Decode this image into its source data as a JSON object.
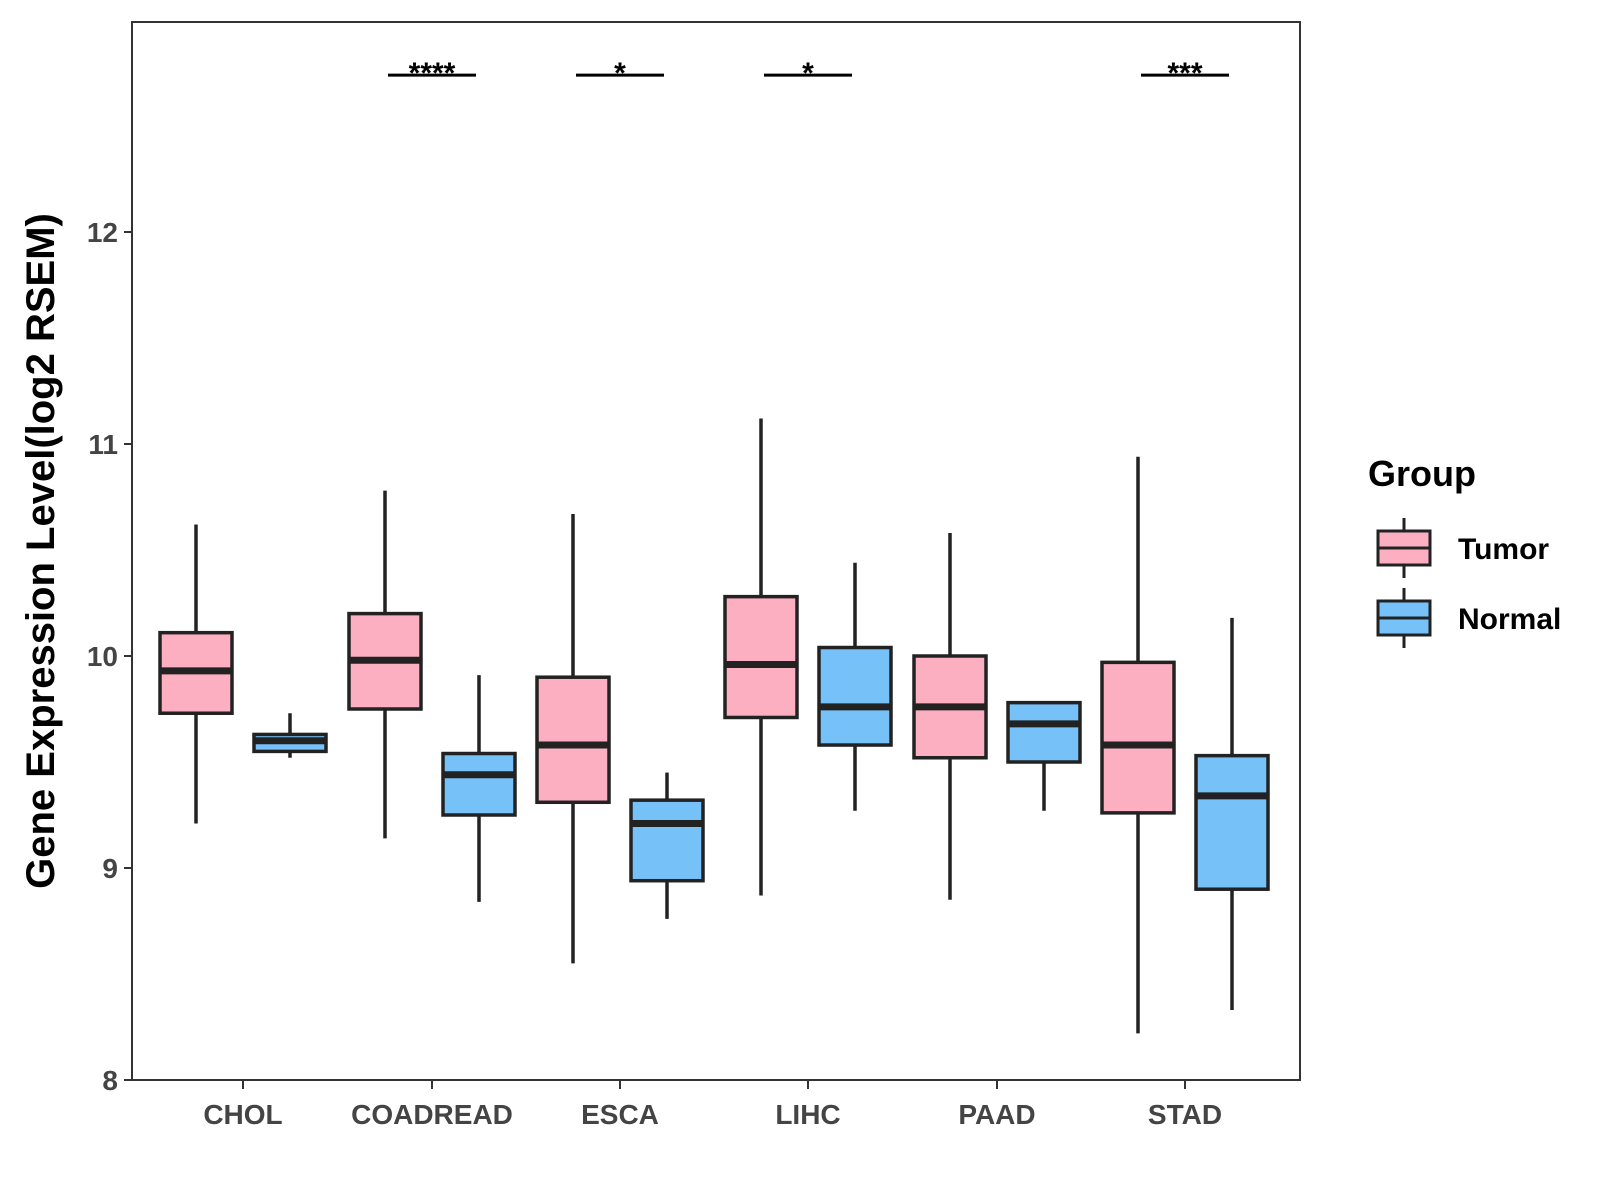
{
  "colors": {
    "tumor": "#FBAFC1",
    "normal": "#76C1F8",
    "stroke": "#222222",
    "panel_border": "#333333"
  },
  "chart_data": {
    "type": "box",
    "title": "",
    "xlabel": "",
    "ylabel": "Gene Expression Level(log2 RSEM)",
    "ylim": [
      8,
      12.9
    ],
    "yticks": [
      8,
      9,
      10,
      11,
      12
    ],
    "ytick_labels": [
      "8",
      "9",
      "10",
      "11",
      "12"
    ],
    "categories": [
      "CHOL",
      "COADREAD",
      "ESCA",
      "LIHC",
      "PAAD",
      "STAD"
    ],
    "legend": {
      "title": "Group",
      "position": "right",
      "entries": [
        "Tumor",
        "Normal"
      ]
    },
    "series": [
      {
        "name": "Tumor",
        "color_key": "tumor",
        "boxes": [
          {
            "category": "CHOL",
            "min": 9.21,
            "q1": 9.73,
            "median": 9.93,
            "q3": 10.11,
            "max": 10.62
          },
          {
            "category": "COADREAD",
            "min": 9.14,
            "q1": 9.75,
            "median": 9.98,
            "q3": 10.2,
            "max": 10.78
          },
          {
            "category": "ESCA",
            "min": 8.55,
            "q1": 9.31,
            "median": 9.58,
            "q3": 9.9,
            "max": 10.67
          },
          {
            "category": "LIHC",
            "min": 8.87,
            "q1": 9.71,
            "median": 9.96,
            "q3": 10.28,
            "max": 11.12
          },
          {
            "category": "PAAD",
            "min": 8.85,
            "q1": 9.52,
            "median": 9.76,
            "q3": 10.0,
            "max": 10.58
          },
          {
            "category": "STAD",
            "min": 8.22,
            "q1": 9.26,
            "median": 9.58,
            "q3": 9.97,
            "max": 10.94
          }
        ]
      },
      {
        "name": "Normal",
        "color_key": "normal",
        "boxes": [
          {
            "category": "CHOL",
            "min": 9.52,
            "q1": 9.55,
            "median": 9.6,
            "q3": 9.63,
            "max": 9.73
          },
          {
            "category": "COADREAD",
            "min": 8.84,
            "q1": 9.25,
            "median": 9.44,
            "q3": 9.54,
            "max": 9.91
          },
          {
            "category": "ESCA",
            "min": 8.76,
            "q1": 8.94,
            "median": 9.21,
            "q3": 9.32,
            "max": 9.45
          },
          {
            "category": "LIHC",
            "min": 9.27,
            "q1": 9.58,
            "median": 9.76,
            "q3": 10.04,
            "max": 10.44
          },
          {
            "category": "PAAD",
            "min": 9.27,
            "q1": 9.5,
            "median": 9.68,
            "q3": 9.78,
            "max": 9.78
          },
          {
            "category": "STAD",
            "min": 8.33,
            "q1": 8.9,
            "median": 9.34,
            "q3": 9.53,
            "max": 10.18
          }
        ]
      }
    ],
    "significance": [
      {
        "category": "COADREAD",
        "label": "****",
        "y": 12.74
      },
      {
        "category": "ESCA",
        "label": "*",
        "y": 12.74
      },
      {
        "category": "LIHC",
        "label": "*",
        "y": 12.74
      },
      {
        "category": "STAD",
        "label": "***",
        "y": 12.74
      }
    ]
  }
}
